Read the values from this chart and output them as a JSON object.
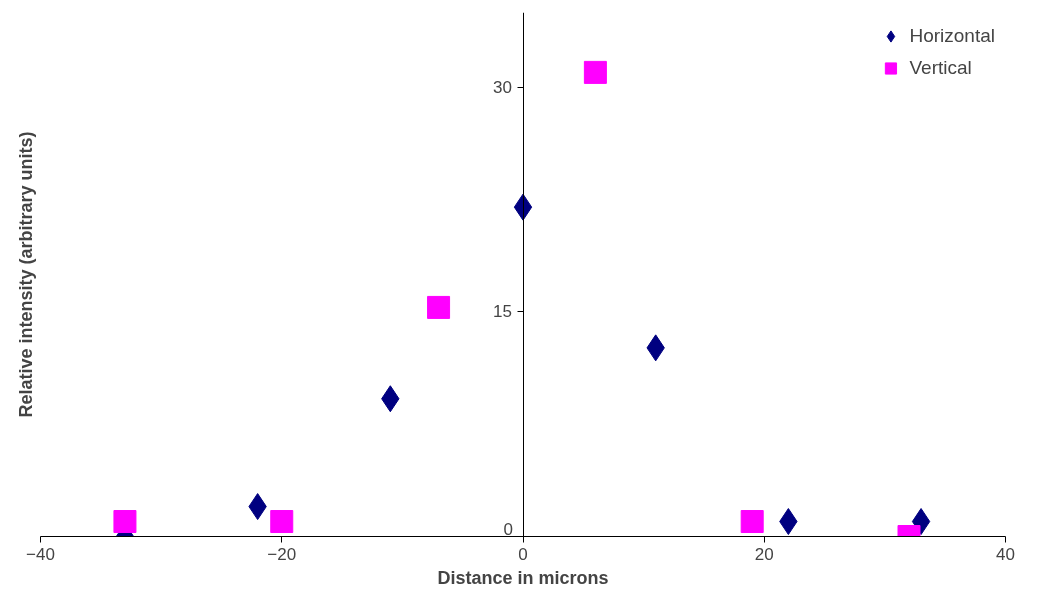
{
  "chart_data": {
    "type": "scatter",
    "xlabel": "Distance in microns",
    "ylabel": "Relative intensity (arbitrary units)",
    "xlim": [
      -40,
      40
    ],
    "xticks": [
      -40,
      -20,
      0,
      20,
      40
    ],
    "ylim": [
      0,
      35
    ],
    "yticks": [
      0,
      15,
      30
    ],
    "grid": false,
    "legend": "top right",
    "series": [
      {
        "name": "Horizontal",
        "color": "#000080",
        "marker": "diamond",
        "x": [
          -33,
          -22,
          -11,
          0,
          11,
          22,
          33
        ],
        "values": [
          0,
          2,
          9.2,
          22,
          12.6,
          1,
          1
        ]
      },
      {
        "name": "Vertical",
        "color": "#ff00ff",
        "marker": "square",
        "x": [
          -33,
          -20,
          -7,
          6,
          19,
          32
        ],
        "values": [
          1,
          1,
          15.3,
          31,
          1,
          0
        ]
      }
    ]
  }
}
